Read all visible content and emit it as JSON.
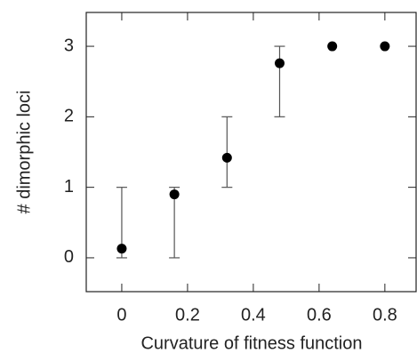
{
  "chart_data": {
    "type": "errorbar",
    "xlabel": "Curvature of fitness function",
    "ylabel": "# dimorphic loci",
    "x": [
      0,
      0.16,
      0.32,
      0.48,
      0.64,
      0.8
    ],
    "series": [
      {
        "color": "#000000",
        "values": [
          0.13,
          0.9,
          1.42,
          2.76,
          3,
          3
        ],
        "lower": [
          0,
          0,
          1,
          2,
          null,
          null
        ],
        "upper": [
          1,
          1,
          2,
          3,
          null,
          null
        ]
      }
    ],
    "xlim": [
      -0.108,
      0.895
    ],
    "ylim": [
      -0.48,
      3.48
    ],
    "xticks": [
      0,
      0.2,
      0.4,
      0.6,
      0.8
    ],
    "yticks": [
      0,
      1,
      2,
      3
    ]
  }
}
